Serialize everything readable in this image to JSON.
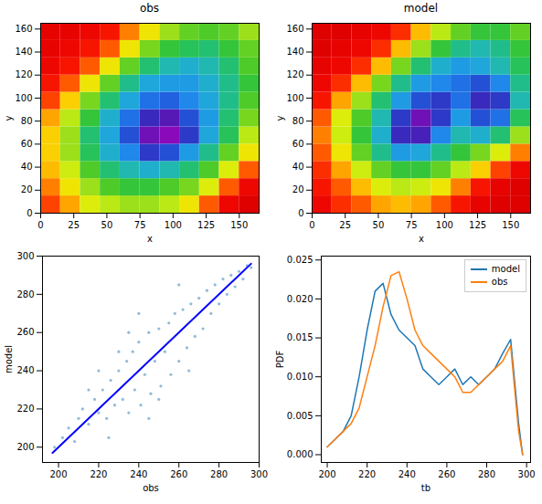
{
  "chart_data": [
    {
      "type": "heatmap",
      "title": "obs",
      "x_label": "x",
      "y_label": "y",
      "xlim": [
        0,
        165
      ],
      "ylim": [
        0,
        165
      ],
      "xticks": [
        0,
        25,
        50,
        75,
        100,
        125,
        150
      ],
      "yticks": [
        0,
        20,
        40,
        60,
        80,
        100,
        120,
        140,
        160
      ],
      "x": [
        7.5,
        22.5,
        37.5,
        52.5,
        67.5,
        82.5,
        97.5,
        112.5,
        127.5,
        142.5,
        157.5
      ],
      "y": [
        7.5,
        22.5,
        37.5,
        52.5,
        67.5,
        82.5,
        97.5,
        112.5,
        127.5,
        142.5,
        157.5
      ],
      "zlim": [
        195,
        295
      ],
      "z": [
        [
          280,
          272,
          262,
          258,
          255,
          255,
          258,
          265,
          278,
          288,
          292
        ],
        [
          275,
          265,
          255,
          248,
          245,
          245,
          248,
          252,
          262,
          278,
          288
        ],
        [
          270,
          260,
          248,
          240,
          235,
          232,
          235,
          240,
          248,
          262,
          278
        ],
        [
          268,
          255,
          242,
          232,
          225,
          215,
          218,
          228,
          238,
          250,
          265
        ],
        [
          268,
          255,
          240,
          230,
          218,
          205,
          202,
          215,
          230,
          242,
          258
        ],
        [
          272,
          258,
          245,
          232,
          222,
          212,
          208,
          218,
          228,
          240,
          252
        ],
        [
          280,
          268,
          252,
          240,
          230,
          222,
          220,
          225,
          230,
          238,
          248
        ],
        [
          285,
          278,
          265,
          250,
          238,
          230,
          228,
          228,
          232,
          238,
          245
        ],
        [
          288,
          285,
          278,
          265,
          250,
          240,
          235,
          232,
          235,
          240,
          248
        ],
        [
          290,
          288,
          285,
          278,
          265,
          252,
          245,
          242,
          240,
          245,
          250
        ],
        [
          290,
          290,
          288,
          285,
          275,
          265,
          255,
          250,
          248,
          250,
          255
        ]
      ]
    },
    {
      "type": "heatmap",
      "title": "model",
      "x_label": "x",
      "y_label": "y",
      "xlim": [
        0,
        165
      ],
      "ylim": [
        0,
        165
      ],
      "xticks": [
        0,
        25,
        50,
        75,
        100,
        125,
        150
      ],
      "yticks": [
        0,
        20,
        40,
        60,
        80,
        100,
        120,
        140,
        160
      ],
      "x": [
        7.5,
        22.5,
        37.5,
        52.5,
        67.5,
        82.5,
        97.5,
        112.5,
        127.5,
        142.5,
        157.5
      ],
      "y": [
        7.5,
        22.5,
        37.5,
        52.5,
        67.5,
        82.5,
        97.5,
        112.5,
        127.5,
        142.5,
        157.5
      ],
      "zlim": [
        195,
        295
      ],
      "z": [
        [
          288,
          282,
          278,
          272,
          270,
          272,
          278,
          285,
          290,
          292,
          292
        ],
        [
          285,
          278,
          270,
          262,
          258,
          260,
          265,
          275,
          285,
          290,
          292
        ],
        [
          282,
          272,
          260,
          250,
          245,
          245,
          250,
          258,
          268,
          280,
          288
        ],
        [
          278,
          265,
          250,
          238,
          228,
          230,
          238,
          245,
          252,
          262,
          275
        ],
        [
          275,
          260,
          245,
          232,
          212,
          210,
          225,
          235,
          232,
          240,
          255
        ],
        [
          278,
          262,
          248,
          235,
          215,
          205,
          215,
          228,
          218,
          222,
          242
        ],
        [
          285,
          272,
          255,
          240,
          228,
          218,
          215,
          222,
          212,
          215,
          235
        ],
        [
          288,
          282,
          270,
          252,
          238,
          228,
          225,
          222,
          218,
          225,
          238
        ],
        [
          290,
          288,
          282,
          270,
          252,
          240,
          232,
          228,
          230,
          235,
          242
        ],
        [
          292,
          290,
          288,
          282,
          270,
          255,
          245,
          238,
          235,
          238,
          245
        ],
        [
          292,
          292,
          290,
          288,
          282,
          270,
          258,
          250,
          245,
          245,
          250
        ]
      ]
    },
    {
      "type": "scatter",
      "x_label": "obs",
      "y_label": "model",
      "xlim": [
        192,
        300
      ],
      "ylim": [
        192,
        300
      ],
      "xticks": [
        200,
        220,
        240,
        260,
        280,
        300
      ],
      "yticks": [
        200,
        220,
        240,
        260,
        280,
        300
      ],
      "color": "#1f77b4",
      "x": [
        198,
        202,
        205,
        208,
        210,
        212,
        215,
        218,
        220,
        222,
        224,
        226,
        228,
        230,
        232,
        234,
        235,
        237,
        238,
        240,
        241,
        243,
        245,
        246,
        248,
        250,
        251,
        253,
        255,
        256,
        258,
        260,
        262,
        264,
        266,
        268,
        270,
        272,
        274,
        276,
        278,
        280,
        282,
        284,
        286,
        288,
        290,
        292,
        294,
        296,
        230,
        225,
        245,
        240,
        250,
        235,
        260,
        265,
        220,
        215
      ],
      "y": [
        200,
        205,
        210,
        203,
        215,
        220,
        212,
        225,
        218,
        230,
        215,
        235,
        222,
        240,
        225,
        245,
        218,
        250,
        230,
        255,
        222,
        238,
        260,
        228,
        245,
        262,
        232,
        250,
        265,
        238,
        270,
        245,
        272,
        252,
        275,
        258,
        278,
        262,
        282,
        270,
        285,
        275,
        288,
        280,
        290,
        284,
        292,
        288,
        295,
        294,
        250,
        205,
        215,
        270,
        225,
        260,
        285,
        240,
        240,
        230
      ],
      "line": {
        "x": [
          197,
          296
        ],
        "y": [
          197,
          296
        ],
        "color": "#0000ff"
      }
    },
    {
      "type": "line",
      "x_label": "tb",
      "y_label": "PDF",
      "xlim": [
        197,
        302
      ],
      "ylim": [
        -0.001,
        0.0255
      ],
      "xticks": [
        200,
        220,
        240,
        260,
        280,
        300
      ],
      "yticks": [
        {
          "value": 0,
          "label": "0.000"
        },
        {
          "value": 0.005,
          "label": "0.005"
        },
        {
          "value": 0.01,
          "label": "0.010"
        },
        {
          "value": 0.015,
          "label": "0.015"
        },
        {
          "value": 0.02,
          "label": "0.020"
        },
        {
          "value": 0.025,
          "label": "0.025"
        }
      ],
      "legend": "upper right",
      "x": [
        200,
        204,
        208,
        212,
        216,
        220,
        224,
        228,
        232,
        236,
        240,
        244,
        248,
        252,
        256,
        260,
        264,
        268,
        272,
        276,
        280,
        284,
        288,
        292,
        296,
        298
      ],
      "series": [
        {
          "name": "model",
          "color": "#1f77b4",
          "values": [
            0.001,
            0.002,
            0.003,
            0.005,
            0.01,
            0.016,
            0.021,
            0.022,
            0.018,
            0.016,
            0.015,
            0.014,
            0.011,
            0.01,
            0.009,
            0.01,
            0.011,
            0.009,
            0.01,
            0.009,
            0.01,
            0.011,
            0.013,
            0.0148,
            0.004,
            0
          ]
        },
        {
          "name": "obs",
          "color": "#ff7f0e",
          "values": [
            0.001,
            0.002,
            0.003,
            0.004,
            0.006,
            0.01,
            0.014,
            0.019,
            0.023,
            0.0235,
            0.02,
            0.016,
            0.014,
            0.013,
            0.012,
            0.011,
            0.01,
            0.008,
            0.008,
            0.009,
            0.01,
            0.011,
            0.012,
            0.014,
            0.003,
            0
          ]
        }
      ]
    }
  ]
}
